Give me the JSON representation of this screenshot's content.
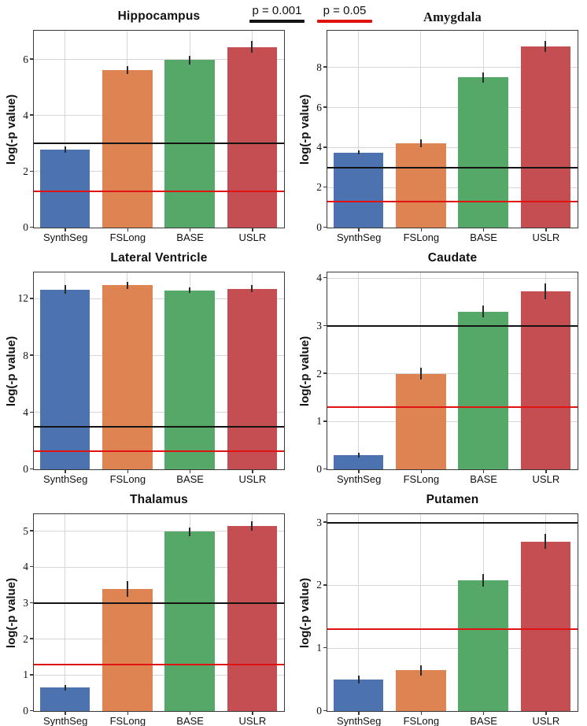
{
  "figure": {
    "ylabel": "log(-p value)",
    "categories": [
      "SynthSeg",
      "FSLong",
      "BASE",
      "USLR"
    ],
    "bar_colors": [
      "#4c72b0",
      "#dd8452",
      "#55a868",
      "#c44e52"
    ],
    "legend": [
      {
        "label": "p = 0.001",
        "color": "#141414",
        "value": 3.0
      },
      {
        "label": "p = 0.05",
        "color": "#e01212",
        "value": 1.3
      }
    ]
  },
  "chart_data": [
    {
      "type": "bar",
      "title": "Hippocampus",
      "categories": [
        "SynthSeg",
        "FSLong",
        "BASE",
        "USLR"
      ],
      "values": [
        2.78,
        5.62,
        5.98,
        6.45
      ],
      "errors": [
        0.12,
        0.15,
        0.15,
        0.2
      ],
      "ylabel": "log(-p value)",
      "ylim": [
        0,
        7.0
      ],
      "yticks": [
        0,
        2,
        4,
        6
      ],
      "ref_lines": [
        {
          "label": "p = 0.001",
          "value": 3.0
        },
        {
          "label": "p = 0.05",
          "value": 1.3
        }
      ],
      "grid": true,
      "legend_position": "figure-top"
    },
    {
      "type": "bar",
      "title": "Amygdala",
      "title_style": "serif",
      "categories": [
        "SynthSeg",
        "FSLong",
        "BASE",
        "USLR"
      ],
      "values": [
        3.75,
        4.2,
        7.5,
        9.05
      ],
      "errors": [
        0.1,
        0.2,
        0.25,
        0.27
      ],
      "ylabel": "log(-p value)",
      "ylim": [
        0,
        9.8
      ],
      "yticks": [
        0,
        2,
        4,
        6,
        8
      ],
      "ref_lines": [
        {
          "label": "p = 0.001",
          "value": 3.0
        },
        {
          "label": "p = 0.05",
          "value": 1.3
        }
      ],
      "grid": true,
      "legend_position": "figure-top"
    },
    {
      "type": "bar",
      "title": "Lateral Ventricle",
      "categories": [
        "SynthSeg",
        "FSLong",
        "BASE",
        "USLR"
      ],
      "values": [
        12.65,
        12.95,
        12.6,
        12.7
      ],
      "errors": [
        0.3,
        0.25,
        0.2,
        0.25
      ],
      "ylabel": "log(-p value)",
      "ylim": [
        0,
        13.8
      ],
      "yticks": [
        0,
        4,
        8,
        12
      ],
      "ref_lines": [
        {
          "label": "p = 0.001",
          "value": 3.0
        },
        {
          "label": "p = 0.05",
          "value": 1.3
        }
      ],
      "grid": true,
      "legend_position": "figure-top"
    },
    {
      "type": "bar",
      "title": "Caudate",
      "categories": [
        "SynthSeg",
        "FSLong",
        "BASE",
        "USLR"
      ],
      "values": [
        0.3,
        2.0,
        3.3,
        3.72
      ],
      "errors": [
        0.05,
        0.12,
        0.13,
        0.17
      ],
      "ylabel": "log(-p value)",
      "ylim": [
        0,
        4.1
      ],
      "yticks": [
        0,
        1,
        2,
        3,
        4
      ],
      "ref_lines": [
        {
          "label": "p = 0.001",
          "value": 3.0
        },
        {
          "label": "p = 0.05",
          "value": 1.3
        }
      ],
      "grid": true,
      "legend_position": "figure-top"
    },
    {
      "type": "bar",
      "title": "Thalamus",
      "categories": [
        "SynthSeg",
        "FSLong",
        "BASE",
        "USLR"
      ],
      "values": [
        0.65,
        3.4,
        4.98,
        5.15
      ],
      "errors": [
        0.08,
        0.22,
        0.13,
        0.13
      ],
      "ylabel": "log(-p value)",
      "ylim": [
        0,
        5.45
      ],
      "yticks": [
        0,
        1,
        2,
        3,
        4,
        5
      ],
      "ref_lines": [
        {
          "label": "p = 0.001",
          "value": 3.0
        },
        {
          "label": "p = 0.05",
          "value": 1.3
        }
      ],
      "grid": true,
      "legend_position": "figure-top"
    },
    {
      "type": "bar",
      "title": "Putamen",
      "categories": [
        "SynthSeg",
        "FSLong",
        "BASE",
        "USLR"
      ],
      "values": [
        0.5,
        0.65,
        2.08,
        2.7
      ],
      "errors": [
        0.06,
        0.08,
        0.1,
        0.12
      ],
      "ylabel": "log(-p value)",
      "ylim": [
        0,
        3.12
      ],
      "yticks": [
        0,
        1,
        2,
        3
      ],
      "ref_lines": [
        {
          "label": "p = 0.001",
          "value": 3.0
        },
        {
          "label": "p = 0.05",
          "value": 1.3
        }
      ],
      "grid": true,
      "legend_position": "figure-top"
    }
  ]
}
